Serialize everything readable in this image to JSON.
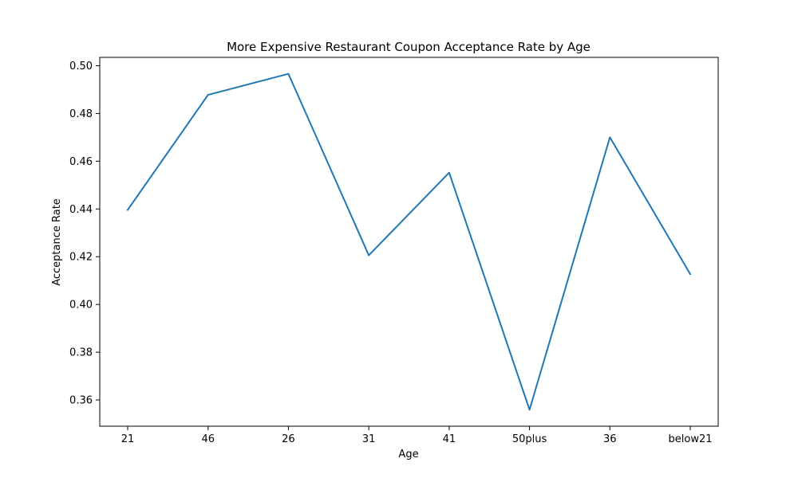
{
  "chart_data": {
    "type": "line",
    "title": "More Expensive Restaurant Coupon Acceptance Rate by Age",
    "xlabel": "Age",
    "ylabel": "Acceptance Rate",
    "categories": [
      "21",
      "46",
      "26",
      "31",
      "41",
      "50plus",
      "36",
      "below21"
    ],
    "series": [
      {
        "values": [
          0.4396,
          0.4878,
          0.4966,
          0.4206,
          0.4552,
          0.3559,
          0.47,
          0.4127
        ],
        "color": "#1f77b4"
      }
    ],
    "yticks": [
      0.36,
      0.38,
      0.4,
      0.42,
      0.44,
      0.46,
      0.48,
      0.5
    ],
    "ytick_labels": [
      "0.36",
      "0.38",
      "0.40",
      "0.42",
      "0.44",
      "0.46",
      "0.48",
      "0.50"
    ],
    "ylim": [
      0.349,
      0.5035
    ],
    "grid": false,
    "legend": "none"
  }
}
